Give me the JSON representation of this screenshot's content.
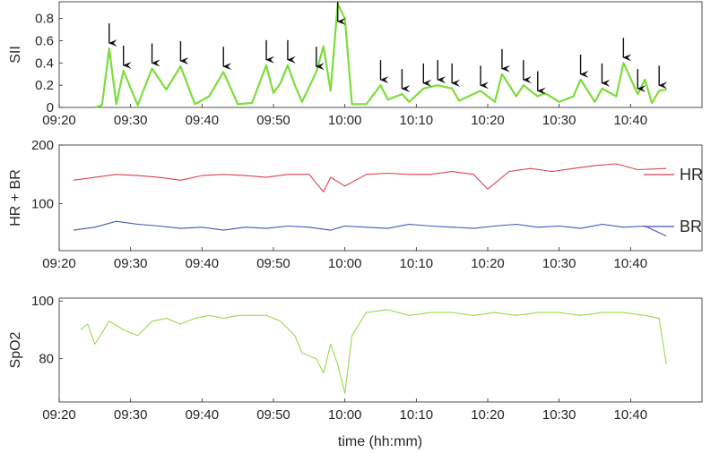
{
  "chart_data": [
    {
      "type": "line",
      "ylabel": "SII",
      "xlabel": "",
      "ylim": [
        0,
        0.95
      ],
      "yticks": [
        "0",
        "0.2",
        "0.4",
        "0.6",
        "0.8"
      ],
      "yticks_values": [
        0,
        0.2,
        0.4,
        0.6,
        0.8
      ],
      "xlim_minutes": [
        0,
        90
      ],
      "xticks": [
        "09:20",
        "09:30",
        "09:40",
        "09:50",
        "10:00",
        "10:10",
        "10:20",
        "10:30",
        "10:40"
      ],
      "color": "#7ddc3a",
      "series": [
        {
          "x_time": [
            "09:25",
            "09:26",
            "09:27",
            "09:28",
            "09:29",
            "09:31",
            "09:33",
            "09:35",
            "09:37",
            "09:39",
            "09:41",
            "09:43",
            "09:45",
            "09:47",
            "09:49",
            "09:50",
            "09:51",
            "09:52",
            "09:53",
            "09:54",
            "09:56",
            "09:57",
            "09:58",
            "09:59",
            "10:00",
            "10:01",
            "10:03",
            "10:05",
            "10:06",
            "10:08",
            "10:09",
            "10:11",
            "10:13",
            "10:15",
            "10:16",
            "10:19",
            "10:21",
            "10:22",
            "10:24",
            "10:25",
            "10:27",
            "10:28",
            "10:30",
            "10:32",
            "10:33",
            "10:35",
            "10:36",
            "10:38",
            "10:39",
            "10:41",
            "10:42",
            "10:43",
            "10:44",
            "10:45"
          ],
          "values": [
            0.0,
            0.02,
            0.53,
            0.03,
            0.33,
            0.02,
            0.35,
            0.16,
            0.37,
            0.03,
            0.1,
            0.32,
            0.03,
            0.04,
            0.38,
            0.13,
            0.22,
            0.38,
            0.2,
            0.05,
            0.32,
            0.55,
            0.15,
            0.93,
            0.8,
            0.03,
            0.03,
            0.2,
            0.07,
            0.12,
            0.05,
            0.17,
            0.2,
            0.17,
            0.06,
            0.15,
            0.05,
            0.3,
            0.1,
            0.2,
            0.1,
            0.13,
            0.05,
            0.1,
            0.25,
            0.05,
            0.17,
            0.1,
            0.4,
            0.12,
            0.25,
            0.04,
            0.15,
            0.16
          ]
        }
      ],
      "arrows_time": [
        "09:27",
        "09:29",
        "09:33",
        "09:37",
        "09:43",
        "09:49",
        "09:52",
        "09:56",
        "09:59",
        "10:05",
        "10:08",
        "10:11",
        "10:13",
        "10:15",
        "10:19",
        "10:22",
        "10:25",
        "10:27",
        "10:33",
        "10:36",
        "10:39",
        "10:41",
        "10:44"
      ]
    },
    {
      "type": "line",
      "ylabel": "HR + BR",
      "xlabel": "",
      "ylim": [
        20,
        200
      ],
      "yticks": [
        "100",
        "200"
      ],
      "yticks_values": [
        100,
        200
      ],
      "xlim_minutes": [
        0,
        90
      ],
      "xticks": [
        "09:20",
        "09:30",
        "09:40",
        "09:50",
        "10:00",
        "10:10",
        "10:20",
        "10:30",
        "10:40"
      ],
      "legend_position": "right",
      "series": [
        {
          "name": "HR",
          "color": "#d9434f",
          "x_time": [
            "09:22",
            "09:25",
            "09:28",
            "09:31",
            "09:34",
            "09:37",
            "09:40",
            "09:43",
            "09:46",
            "09:49",
            "09:52",
            "09:55",
            "09:57",
            "09:58",
            "10:00",
            "10:03",
            "10:06",
            "10:09",
            "10:12",
            "10:15",
            "10:18",
            "10:20",
            "10:23",
            "10:26",
            "10:29",
            "10:32",
            "10:35",
            "10:38",
            "10:41",
            "10:45"
          ],
          "values": [
            140,
            145,
            150,
            148,
            145,
            140,
            148,
            150,
            148,
            145,
            150,
            150,
            120,
            145,
            130,
            150,
            152,
            150,
            150,
            155,
            150,
            125,
            155,
            160,
            155,
            160,
            165,
            168,
            158,
            160
          ]
        },
        {
          "name": "BR",
          "color": "#4055b8",
          "x_time": [
            "09:22",
            "09:25",
            "09:28",
            "09:31",
            "09:34",
            "09:37",
            "09:40",
            "09:43",
            "09:46",
            "09:49",
            "09:52",
            "09:55",
            "09:58",
            "10:00",
            "10:03",
            "10:06",
            "10:09",
            "10:12",
            "10:15",
            "10:18",
            "10:21",
            "10:24",
            "10:27",
            "10:30",
            "10:33",
            "10:36",
            "10:39",
            "10:42",
            "10:45"
          ],
          "values": [
            55,
            60,
            70,
            65,
            62,
            58,
            60,
            55,
            60,
            58,
            62,
            60,
            55,
            62,
            60,
            58,
            65,
            62,
            60,
            58,
            62,
            65,
            60,
            62,
            58,
            65,
            60,
            62,
            45
          ]
        }
      ]
    },
    {
      "type": "line",
      "ylabel": "SpO2",
      "xlabel": "time (hh:mm)",
      "ylim": [
        65,
        101
      ],
      "yticks": [
        "80",
        "100"
      ],
      "yticks_values": [
        80,
        100
      ],
      "xlim_minutes": [
        0,
        90
      ],
      "xticks": [
        "09:20",
        "09:30",
        "09:40",
        "09:50",
        "10:00",
        "10:10",
        "10:20",
        "10:30",
        "10:40"
      ],
      "color": "#9ad94a",
      "series": [
        {
          "x_time": [
            "09:23",
            "09:24",
            "09:25",
            "09:27",
            "09:29",
            "09:31",
            "09:33",
            "09:35",
            "09:37",
            "09:39",
            "09:41",
            "09:43",
            "09:45",
            "09:47",
            "09:49",
            "09:51",
            "09:53",
            "09:54",
            "09:56",
            "09:57",
            "09:58",
            "09:59",
            "10:00",
            "10:01",
            "10:03",
            "10:06",
            "10:09",
            "10:12",
            "10:15",
            "10:18",
            "10:21",
            "10:24",
            "10:27",
            "10:30",
            "10:33",
            "10:36",
            "10:39",
            "10:42",
            "10:44",
            "10:45"
          ],
          "values": [
            90,
            92,
            85,
            93,
            90,
            88,
            93,
            94,
            92,
            94,
            95,
            94,
            95,
            95,
            95,
            93,
            88,
            82,
            80,
            75,
            85,
            78,
            68,
            88,
            96,
            97,
            95,
            96,
            96,
            95,
            96,
            95,
            96,
            96,
            95,
            96,
            96,
            95,
            94,
            78
          ]
        }
      ]
    }
  ]
}
